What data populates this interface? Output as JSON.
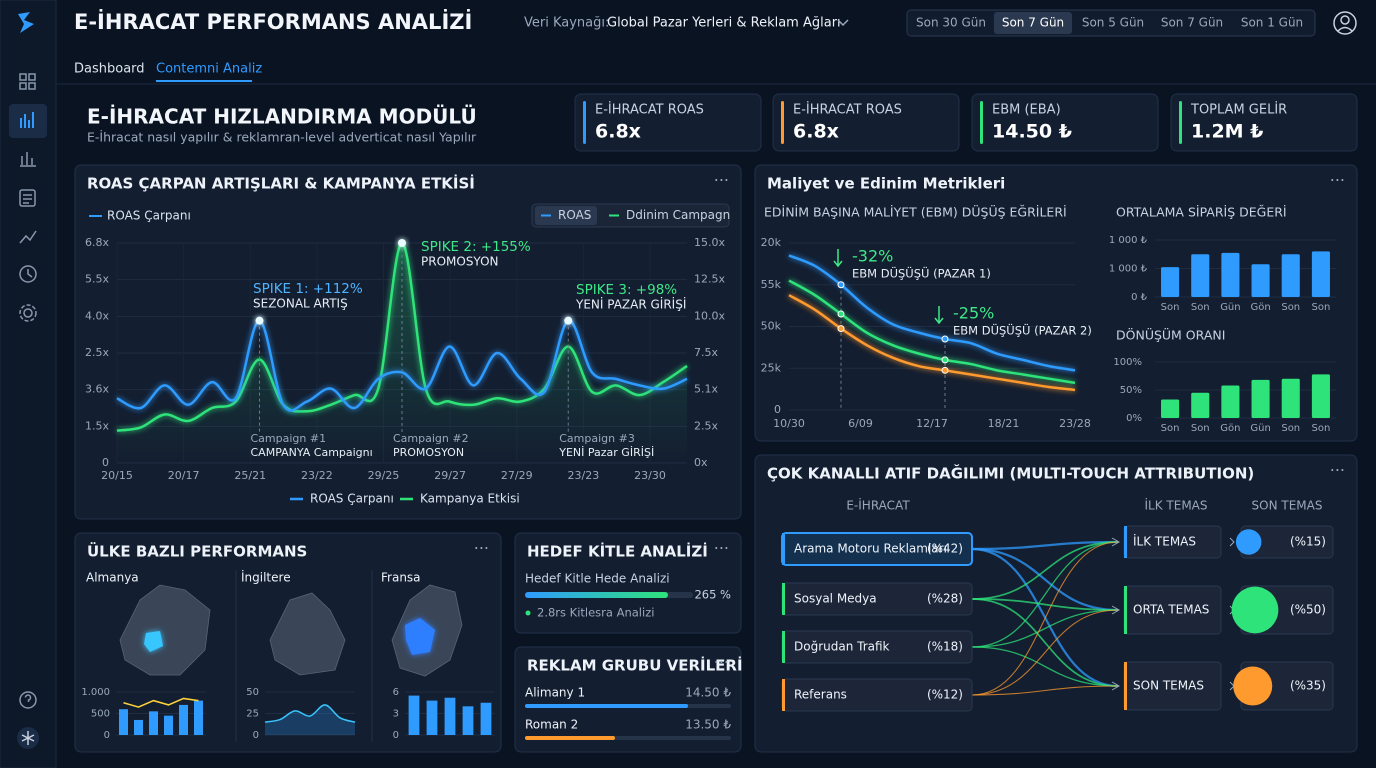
{
  "header": {
    "title": "E-İHRACAT PERFORMANS ANALİZİ",
    "source_label": "Veri Kaynağı:",
    "source": "Global Pazar Yerleri & Reklam Ağları",
    "ranges": [
      "Son 30 Gün",
      "Son 7 Gün",
      "Son 5 Gün",
      "Son 7 Gün",
      "Son 1 Gün"
    ]
  },
  "tabs": [
    "Dashboard",
    "Contemni Analiz"
  ],
  "module": {
    "title": "E-İHRACAT HIZLANDIRMA MODÜLÜ",
    "subtitle": "E-İhracat nasıl yapılır & reklamran-level adverticat nasıl Yapılır"
  },
  "kpis": [
    {
      "label": "E-İHRACAT ROAS",
      "value": "6.8x",
      "color": "#2f9bff"
    },
    {
      "label": "E-İHRACAT ROAS",
      "value": "6.8x",
      "color": "#ff9a2e"
    },
    {
      "label": "EBM (EBA)",
      "value": "14.50 ₺",
      "color": "#2ee37a"
    },
    {
      "label": "TOPLAM GELİR",
      "value": "1.2M ₺",
      "color": "#2ee37a"
    }
  ],
  "roas_chart": {
    "type": "line",
    "title": "ROAS ÇARPAN ARTIŞLARI & KAMPANYA ETKİSİ",
    "legend_title": "ROAS Çarpanı",
    "toggles": [
      "ROAS",
      "Ddinim Campagn"
    ],
    "xlabels": [
      "20/15",
      "20/17",
      "25/21",
      "23/22",
      "29/25",
      "29/27",
      "27/29",
      "23/23",
      "23/30"
    ],
    "ylabels": [
      "0",
      "1.5x",
      "3.6x",
      "2.5x",
      "4.0x",
      "5.5x",
      "6.8x"
    ],
    "y2labels": [
      "0x",
      "2.5x",
      "5.1x",
      "7.5x",
      "10.0x",
      "12.5x",
      "15.0x"
    ],
    "ylim": [
      0,
      6.8
    ],
    "series": [
      {
        "name": "ROAS Çarpanı",
        "color": "#2f9bff",
        "values": [
          2.0,
          1.7,
          2.4,
          1.8,
          2.5,
          2.0,
          4.4,
          1.8,
          1.9,
          2.3,
          1.7,
          2.6,
          2.8,
          2.3,
          3.6,
          2.4,
          3.4,
          2.6,
          2.2,
          4.4,
          2.8,
          2.6,
          2.4,
          2.3,
          2.6
        ]
      },
      {
        "name": "Kampanya Etkisi",
        "color": "#2ee37a",
        "values": [
          1.0,
          1.1,
          1.5,
          1.3,
          1.7,
          1.9,
          3.2,
          1.8,
          1.6,
          1.8,
          2.1,
          2.3,
          6.8,
          2.3,
          1.9,
          1.8,
          2.0,
          1.9,
          2.3,
          3.6,
          2.2,
          2.4,
          2.1,
          2.5,
          3.0
        ]
      }
    ],
    "spikes": [
      {
        "title": "SPIKE 1: +112%",
        "subtitle": "SEZONAL ARTIŞ",
        "color": "#4fb4ff"
      },
      {
        "title": "SPIKE 2: +155%",
        "subtitle": "PROMOSYON",
        "color": "#3ee887"
      },
      {
        "title": "SPIKE 3: +98%",
        "subtitle": "YENİ PAZAR GİRİŞİ",
        "color": "#3ee887"
      }
    ],
    "campaigns": [
      {
        "title": "Campaign #1",
        "subtitle": "CAMPANYA Campaignı"
      },
      {
        "title": "Campaign #2",
        "subtitle": "PROMOSYON"
      },
      {
        "title": "Campaign #3",
        "subtitle": "YENİ Pazar GİRİŞİ"
      }
    ]
  },
  "cost_chart": {
    "type": "line",
    "title": "Maliyet ve Edinim Metrikleri",
    "subtitle": "EDİNİM BAŞINA MALİYET (EBM) DÜŞÜŞ EĞRİLERİ",
    "xlabels": [
      "10/30",
      "6/09",
      "12/17",
      "18/21",
      "23/28"
    ],
    "ylabels": [
      "0",
      "25k",
      "50k",
      "55k",
      "20k"
    ],
    "ylim": [
      0,
      4
    ],
    "series": [
      {
        "color": "#2f9bff",
        "values": [
          3.7,
          3.45,
          3.0,
          2.45,
          2.05,
          1.85,
          1.7,
          1.6,
          1.35,
          1.2,
          1.05,
          0.95
        ]
      },
      {
        "color": "#2ee37a",
        "values": [
          3.1,
          2.75,
          2.3,
          1.85,
          1.55,
          1.35,
          1.2,
          1.1,
          0.95,
          0.85,
          0.75,
          0.65
        ]
      },
      {
        "color": "#ff9a2e",
        "values": [
          2.75,
          2.4,
          1.95,
          1.55,
          1.25,
          1.05,
          0.95,
          0.85,
          0.75,
          0.65,
          0.55,
          0.48
        ]
      }
    ],
    "annotations": [
      {
        "title": "-32%",
        "subtitle": "EBM DÜŞÜŞÜ (PAZAR 1)"
      },
      {
        "title": "-25%",
        "subtitle": "EBM DÜŞÜŞÜ (PAZAR 2)"
      }
    ]
  },
  "aov_chart": {
    "type": "bar",
    "title": "ORTALAMA SİPARİŞ DEĞERİ",
    "ylabels": [
      "0 ₺",
      "1 000 ₺",
      "1 000 ₺"
    ],
    "ylim": [
      0,
      2
    ],
    "categories": [
      "Son",
      "Son",
      "Gün",
      "Gön",
      "Son",
      "Son"
    ],
    "values": [
      1.05,
      1.5,
      1.55,
      1.15,
      1.5,
      1.6
    ],
    "color": "#2f9bff"
  },
  "conversion_chart": {
    "type": "bar",
    "title": "DÖNÜŞÜM ORANI",
    "ylim": [
      0,
      100
    ],
    "yticks": [
      {
        "value": 0,
        "label": "0%"
      },
      {
        "value": 50,
        "label": "50%"
      },
      {
        "value": 100,
        "label": "100%"
      }
    ],
    "categories": [
      "Son",
      "Son",
      "Gön",
      "Gün",
      "Son",
      "Son"
    ],
    "values": [
      33,
      45,
      58,
      68,
      70,
      78
    ],
    "color": "#2ee37a"
  },
  "attribution": {
    "title": "ÇOK KANALLI ATIF DAĞILIMI (MULTI-TOUCH ATTRIBUTION)",
    "headers": [
      "E-İHRACAT",
      "İLK TEMAS",
      "SON TEMAS"
    ],
    "channels": {
      "names": [
        "Arama Motoru Reklamları",
        "Sosyal Medya",
        "Doğrudan Trafik",
        "Referans"
      ],
      "values": [
        42,
        28,
        18,
        12
      ],
      "value_labels": [
        "(%42)",
        "(%28)",
        "(%18)",
        "(%12)"
      ],
      "colors": [
        "#2f9bff",
        "#2ee37a",
        "#2ee37a",
        "#ff9a2e"
      ]
    },
    "touches": {
      "names": [
        "İLK TEMAS",
        "ORTA TEMAS",
        "SON TEMAS"
      ],
      "values": [
        15,
        50,
        35
      ],
      "value_labels": [
        "(%15)",
        "(%50)",
        "(%35)"
      ],
      "colors": [
        "#2f9bff",
        "#2ee37a",
        "#ff9a2e"
      ]
    }
  },
  "country": {
    "title": "ÜLKE BAZLI PERFORMANS",
    "items": [
      {
        "name": "Almanya",
        "ylim": [
          0,
          1000
        ],
        "yticks": [
          0,
          500,
          {
            "value": 1000,
            "label": "1.000"
          }
        ],
        "values": [
          600,
          350,
          550,
          450,
          700,
          800
        ],
        "line": [
          750,
          650,
          800,
          700,
          850,
          800
        ]
      },
      {
        "name": "İngiltere",
        "ylim": [
          0,
          50
        ],
        "yticks": [
          0,
          25,
          50
        ],
        "values": [
          15,
          18,
          28,
          22,
          35,
          20,
          15
        ]
      },
      {
        "name": "Fransa",
        "ylim": [
          0,
          6
        ],
        "yticks": [
          0,
          3,
          6
        ],
        "values": [
          5.5,
          4.8,
          5.2,
          4,
          4.5
        ]
      }
    ]
  },
  "audience": {
    "title": "HEDEF KİTLE ANALİZİ",
    "label": "Hedef Kitle Hede Analizi",
    "value": "265 %",
    "note": "2.8rs Kitlesra Analizi"
  },
  "ad_groups": {
    "title": "REKLAM GRUBU VERİLERİ",
    "rows": [
      {
        "name": "Alimany 1",
        "value": "14.50 ₺"
      },
      {
        "name": "Roman 2",
        "value": "13.50 ₺"
      }
    ]
  }
}
